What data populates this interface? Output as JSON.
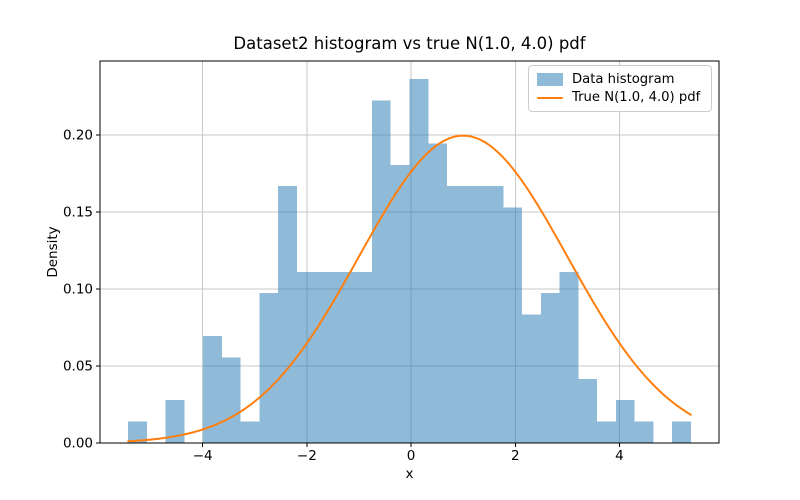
{
  "chart_data": {
    "type": "bar",
    "subtype": "histogram_with_pdf_line",
    "title": "Dataset2 histogram vs true N(1.0, 4.0) pdf",
    "xlabel": "x",
    "ylabel": "Density",
    "xlim": [
      -5.97,
      5.91
    ],
    "ylim": [
      0,
      0.2479
    ],
    "grid": true,
    "grid_color": "#c9c9c9",
    "legend_position": "upper right",
    "xticks": [
      -4,
      -2,
      0,
      2,
      4
    ],
    "xtick_labels": [
      "−4",
      "−2",
      "0",
      "2",
      "4"
    ],
    "yticks": [
      0,
      0.05,
      0.1,
      0.15,
      0.2
    ],
    "ytick_labels": [
      "0.00",
      "0.05",
      "0.10",
      "0.15",
      "0.20"
    ],
    "histogram": {
      "label": "Data histogram",
      "color": "#1f77b4",
      "alpha": 0.5,
      "n_samples": 200,
      "n_bins": 30,
      "bin_start": -5.43,
      "bin_width": 0.36,
      "counts": [
        1,
        0,
        2,
        0,
        5,
        4,
        1,
        7,
        12,
        8,
        8,
        8,
        8,
        16,
        13,
        17,
        14,
        12,
        12,
        12,
        11,
        6,
        7,
        8,
        3,
        1,
        2,
        1,
        0,
        1
      ],
      "densities": [
        0.0139,
        0,
        0.0278,
        0,
        0.0694,
        0.0556,
        0.0139,
        0.0972,
        0.1667,
        0.1111,
        0.1111,
        0.1111,
        0.1111,
        0.2222,
        0.1806,
        0.2361,
        0.1944,
        0.1667,
        0.1667,
        0.1667,
        0.1528,
        0.0833,
        0.0972,
        0.1111,
        0.0417,
        0.0139,
        0.0278,
        0.0139,
        0,
        0.0139
      ]
    },
    "curve": {
      "label": "True N(1.0, 4.0) pdf",
      "color": "#ff7f0e",
      "mean": 1.0,
      "variance": 4.0,
      "peak_density": 0.1995,
      "x_range": [
        -5.43,
        5.37
      ]
    },
    "legend": [
      {
        "label": "Data histogram",
        "swatch": "patch"
      },
      {
        "label": "True N(1.0, 4.0) pdf",
        "swatch": "line"
      }
    ]
  }
}
